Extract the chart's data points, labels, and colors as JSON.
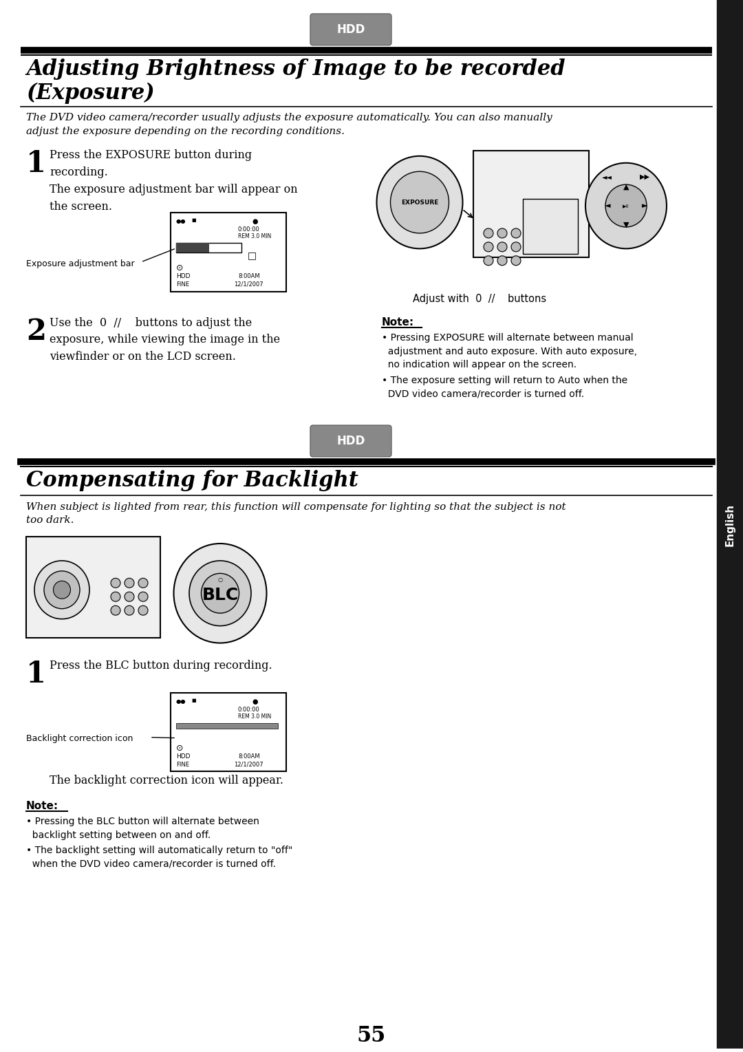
{
  "bg_color": "#ffffff",
  "sidebar_color": "#1a1a1a",
  "sidebar_text": "English",
  "hdd_badge_color": "#888888",
  "hdd_text": "HDD",
  "section1_title_line1": "Adjusting Brightness of Image to be recorded",
  "section1_title_line2": "(Exposure)",
  "section1_intro": "The DVD video camera/recorder usually adjusts the exposure automatically. You can also manually\nadjust the exposure depending on the recording conditions.",
  "step1_num": "1",
  "step1_text": "Press the EXPOSURE button during\nrecording.",
  "step1_subtext": "The exposure adjustment bar will appear on\nthe screen.",
  "exposure_adj_label": "Exposure adjustment bar",
  "adjust_caption": "Adjust with  0  //    buttons",
  "step2_num": "2",
  "step2_text": "Use the  0  //    buttons to adjust the\nexposure, while viewing the image in the\nviewfinder or on the LCD screen.",
  "note_title": "Note:",
  "note_bullet1": "Pressing EXPOSURE will alternate between manual adjustment and auto exposure. With auto exposure, no indication will appear on the screen.",
  "note_bullet2": "The exposure setting will return to Auto when the DVD video camera/recorder is turned off.",
  "section2_hdd": "HDD",
  "section2_title": "Compensating for Backlight",
  "section2_intro": "When subject is lighted from rear, this function will compensate for lighting so that the subject is not\ntoo dark.",
  "blc_step1_num": "1",
  "blc_step1_text": "Press the BLC button during recording.",
  "blc_adj_label": "Backlight correction icon",
  "blc_subtext": "The backlight correction icon will appear.",
  "blc_note_title": "Note:",
  "blc_note_bullet1": "Pressing the BLC button will alternate between backlight setting between on and off.",
  "blc_note_bullet2": "The backlight setting will automatically return to \"off\" when the DVD video camera/recorder is turned off.",
  "page_number": "55"
}
